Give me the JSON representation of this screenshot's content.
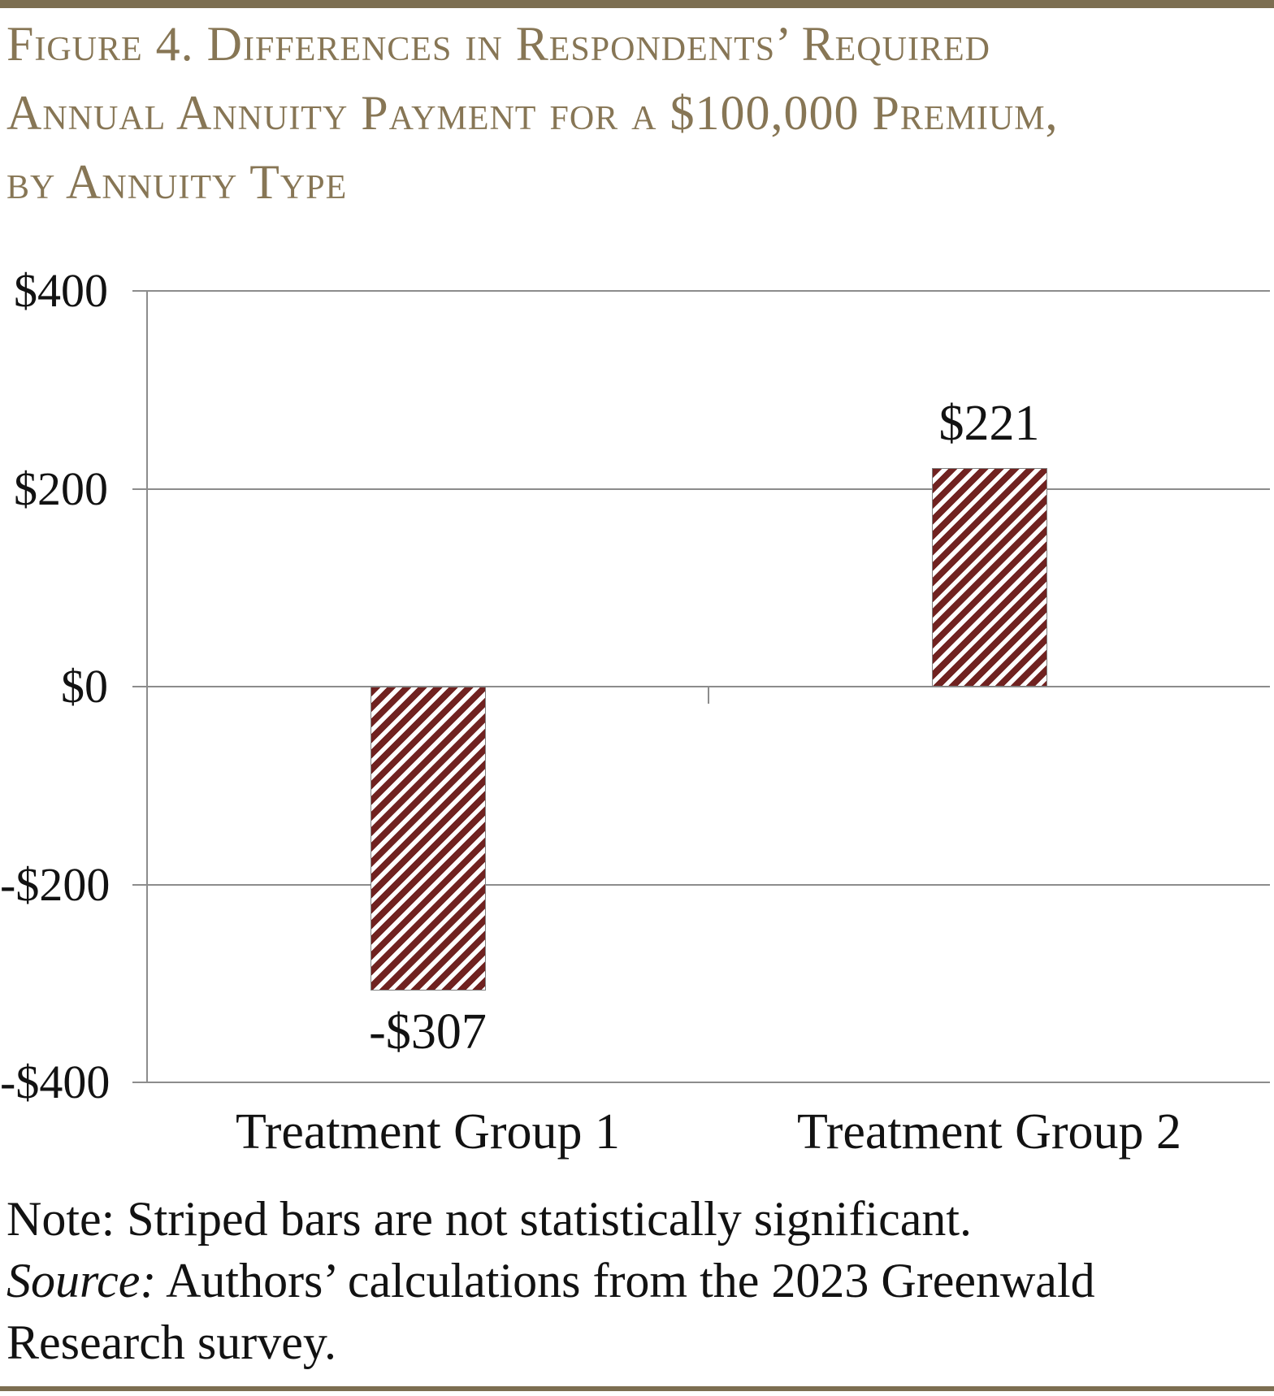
{
  "figure": {
    "title_lines": [
      "Figure 4. Differences in Respondents’ Required",
      "Annual Annuity Payment for a $100,000 Premium,",
      "by Annuity Type"
    ],
    "note": "Note: Striped bars are not statistically significant.",
    "source_label": "Source:",
    "source_rest": " Authors’ calculations from the 2023 Greenwald",
    "source_cont": "Research survey.",
    "title_color": "#877655",
    "rule_color": "#7C6E51"
  },
  "chart_data": {
    "type": "bar",
    "title": "Figure 4. Differences in Respondents’ Required Annual Annuity Payment for a $100,000 Premium, by Annuity Type",
    "categories": [
      "Treatment Group 1",
      "Treatment Group 2"
    ],
    "values": [
      -307,
      221
    ],
    "value_labels": [
      "-$307",
      "$221"
    ],
    "ylim": [
      -400,
      400
    ],
    "yticks": [
      400,
      200,
      0,
      -200,
      -400
    ],
    "ytick_labels": [
      "$400",
      "$200",
      "$0",
      "-$200",
      "-$400"
    ],
    "xlabel": "",
    "ylabel": "",
    "grid": true,
    "legend": false,
    "bar_pattern": "diagonal-stripes",
    "bar_stripe_color": "#702220",
    "bar_bg_color": "#FFFFFF",
    "bar_border_color": "#7F7F7F",
    "grid_color": "#8C8C8C",
    "text_color": "#121212"
  }
}
